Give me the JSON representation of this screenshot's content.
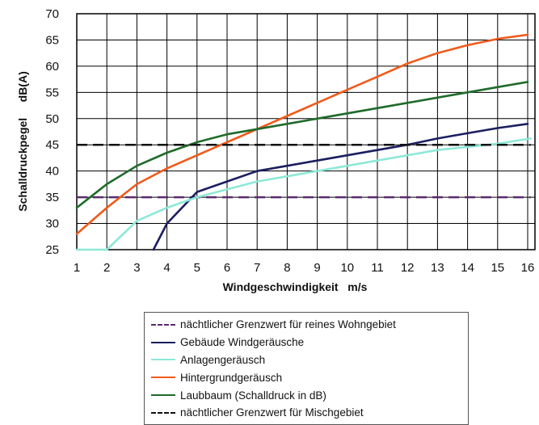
{
  "chart_data": {
    "type": "line",
    "xlabel": "Windgeschwindigkeit   m/s",
    "ylabel": "Schalldruckpegel     dB(A)",
    "xlim": [
      1,
      16
    ],
    "ylim": [
      25,
      70
    ],
    "x_ticks": [
      "1",
      "2",
      "3",
      "4",
      "5",
      "6",
      "7",
      "8",
      "9",
      "10",
      "11",
      "12",
      "13",
      "14",
      "15",
      "16"
    ],
    "y_ticks": [
      "25",
      "30",
      "35",
      "40",
      "45",
      "50",
      "55",
      "60",
      "65",
      "70"
    ],
    "grid": true,
    "legend_position": "bottom",
    "series": [
      {
        "name": "nächtlicher Grenzwert für reines Wohngebiet",
        "color": "#5b2a6e",
        "dash": true,
        "x": [
          1,
          16.1
        ],
        "y": [
          35,
          35
        ]
      },
      {
        "name": "Gebäude Windgeräusche",
        "color": "#1b1f5e",
        "dash": false,
        "x": [
          3.55,
          4,
          5,
          6,
          7,
          8,
          9,
          10,
          11,
          12,
          13,
          14,
          15,
          16
        ],
        "y": [
          25,
          30,
          36,
          38,
          40,
          41,
          42,
          43,
          44,
          45,
          46.2,
          47.2,
          48.2,
          49
        ]
      },
      {
        "name": "Anlagengeräusch",
        "color": "#8ee8d8",
        "dash": false,
        "x": [
          1,
          2,
          3,
          4,
          5,
          6,
          7,
          8,
          9,
          10,
          11,
          12,
          13,
          14,
          15,
          16.1
        ],
        "y": [
          25,
          25,
          30.5,
          33,
          35,
          36.5,
          38,
          39,
          40,
          41,
          42,
          43,
          44,
          44.6,
          45.2,
          46.2
        ]
      },
      {
        "name": "Hintergrundgeräusch",
        "color": "#f05a1a",
        "dash": false,
        "x": [
          1,
          2,
          3,
          4,
          5,
          6,
          7,
          8,
          9,
          10,
          11,
          12,
          13,
          14,
          15,
          16
        ],
        "y": [
          28,
          33,
          37.5,
          40.5,
          43,
          45.5,
          48,
          50.5,
          53,
          55.5,
          58,
          60.5,
          62.5,
          64,
          65.2,
          66
        ]
      },
      {
        "name": "Laubbaum (Schalldruck in dB)",
        "color": "#1f6b2a",
        "dash": false,
        "x": [
          1,
          2,
          3,
          4,
          5,
          6,
          7,
          8,
          9,
          10,
          11,
          12,
          13,
          14,
          15,
          16
        ],
        "y": [
          33,
          37.5,
          41,
          43.5,
          45.5,
          47,
          48,
          49,
          50,
          51,
          52,
          53,
          54,
          55,
          56,
          57
        ]
      },
      {
        "name": "nächtlicher Grenzwert für Mischgebiet",
        "color": "#111111",
        "dash": true,
        "x": [
          1,
          16.1
        ],
        "y": [
          45,
          45
        ]
      }
    ]
  }
}
